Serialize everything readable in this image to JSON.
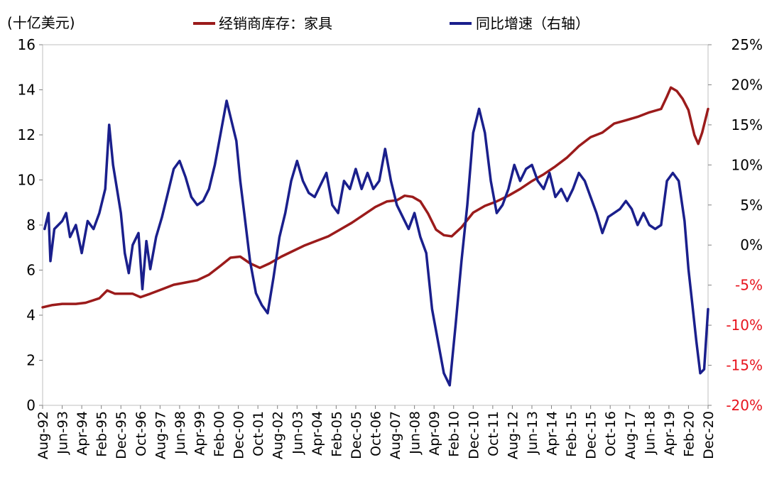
{
  "chart_data": {
    "type": "line",
    "unit_label": "(十亿美元)",
    "y_left": {
      "ylim": [
        0,
        16
      ],
      "ticks": [
        "0",
        "2",
        "4",
        "6",
        "8",
        "10",
        "12",
        "14",
        "16"
      ]
    },
    "y_right": {
      "ylim": [
        -20,
        25
      ],
      "ticks": [
        {
          "value": -20,
          "label": "-20%",
          "color": "#e8141e"
        },
        {
          "value": -15,
          "label": "-15%",
          "color": "#e8141e"
        },
        {
          "value": -10,
          "label": "-10%",
          "color": "#e8141e"
        },
        {
          "value": -5,
          "label": "-5%",
          "color": "#e8141e"
        },
        {
          "value": 0,
          "label": "0%",
          "color": "#000000"
        },
        {
          "value": 5,
          "label": "5%",
          "color": "#000000"
        },
        {
          "value": 10,
          "label": "10%",
          "color": "#000000"
        },
        {
          "value": 15,
          "label": "15%",
          "color": "#000000"
        },
        {
          "value": 20,
          "label": "20%",
          "color": "#000000"
        },
        {
          "value": 25,
          "label": "25%",
          "color": "#000000"
        }
      ]
    },
    "x_ticks": [
      "Aug-92",
      "Jun-93",
      "Apr-94",
      "Feb-95",
      "Dec-95",
      "Oct-96",
      "Aug-97",
      "Jun-98",
      "Apr-99",
      "Feb-00",
      "Dec-00",
      "Oct-01",
      "Aug-02",
      "Jun-03",
      "Apr-04",
      "Feb-05",
      "Dec-05",
      "Oct-06",
      "Aug-07",
      "Jun-08",
      "Apr-09",
      "Feb-10",
      "Dec-10",
      "Oct-11",
      "Aug-12",
      "Jun-13",
      "Apr-14",
      "Feb-15",
      "Dec-15",
      "Oct-16",
      "Aug-17",
      "Jun-18",
      "Apr-19",
      "Feb-20",
      "Dec-20"
    ],
    "grid": false,
    "legend_position": "top",
    "series": [
      {
        "name": "经销商库存：家具",
        "axis": "left",
        "color": "#9b1b1b",
        "points": [
          [
            "1992-08",
            4.35
          ],
          [
            "1993-01",
            4.45
          ],
          [
            "1993-06",
            4.5
          ],
          [
            "1994-01",
            4.5
          ],
          [
            "1994-06",
            4.55
          ],
          [
            "1995-01",
            4.75
          ],
          [
            "1995-05",
            5.1
          ],
          [
            "1995-09",
            4.95
          ],
          [
            "1996-01",
            4.95
          ],
          [
            "1996-06",
            4.95
          ],
          [
            "1996-10",
            4.8
          ],
          [
            "1997-03",
            4.95
          ],
          [
            "1997-09",
            5.15
          ],
          [
            "1998-03",
            5.35
          ],
          [
            "1998-09",
            5.45
          ],
          [
            "1999-03",
            5.55
          ],
          [
            "1999-09",
            5.8
          ],
          [
            "2000-03",
            6.2
          ],
          [
            "2000-08",
            6.55
          ],
          [
            "2001-01",
            6.6
          ],
          [
            "2001-06",
            6.3
          ],
          [
            "2001-11",
            6.1
          ],
          [
            "2002-04",
            6.3
          ],
          [
            "2002-10",
            6.6
          ],
          [
            "2003-04",
            6.85
          ],
          [
            "2003-10",
            7.1
          ],
          [
            "2004-04",
            7.3
          ],
          [
            "2004-10",
            7.5
          ],
          [
            "2005-04",
            7.8
          ],
          [
            "2005-10",
            8.1
          ],
          [
            "2006-04",
            8.45
          ],
          [
            "2006-10",
            8.8
          ],
          [
            "2007-04",
            9.05
          ],
          [
            "2007-09",
            9.1
          ],
          [
            "2008-01",
            9.3
          ],
          [
            "2008-05",
            9.25
          ],
          [
            "2008-09",
            9.05
          ],
          [
            "2009-01",
            8.5
          ],
          [
            "2009-05",
            7.8
          ],
          [
            "2009-09",
            7.55
          ],
          [
            "2010-01",
            7.5
          ],
          [
            "2010-06",
            7.9
          ],
          [
            "2010-12",
            8.55
          ],
          [
            "2011-06",
            8.85
          ],
          [
            "2011-12",
            9.05
          ],
          [
            "2012-06",
            9.3
          ],
          [
            "2012-12",
            9.6
          ],
          [
            "2013-06",
            9.95
          ],
          [
            "2013-12",
            10.25
          ],
          [
            "2014-06",
            10.6
          ],
          [
            "2014-12",
            11.0
          ],
          [
            "2015-06",
            11.5
          ],
          [
            "2015-12",
            11.9
          ],
          [
            "2016-06",
            12.1
          ],
          [
            "2016-12",
            12.5
          ],
          [
            "2017-06",
            12.65
          ],
          [
            "2017-12",
            12.8
          ],
          [
            "2018-06",
            13.0
          ],
          [
            "2018-12",
            13.15
          ],
          [
            "2019-03",
            13.7
          ],
          [
            "2019-05",
            14.1
          ],
          [
            "2019-08",
            13.95
          ],
          [
            "2019-11",
            13.6
          ],
          [
            "2020-02",
            13.1
          ],
          [
            "2020-05",
            12.0
          ],
          [
            "2020-07",
            11.6
          ],
          [
            "2020-09",
            12.1
          ],
          [
            "2020-12",
            13.15
          ]
        ]
      },
      {
        "name": "同比增速（右轴）",
        "axis": "right",
        "color": "#1a1f8c",
        "points": [
          [
            "1992-09",
            2.0
          ],
          [
            "1992-11",
            4.0
          ],
          [
            "1992-12",
            -2.0
          ],
          [
            "1993-02",
            2.0
          ],
          [
            "1993-06",
            3.0
          ],
          [
            "1993-08",
            4.0
          ],
          [
            "1993-10",
            1.0
          ],
          [
            "1994-01",
            2.5
          ],
          [
            "1994-04",
            -1.0
          ],
          [
            "1994-07",
            3.0
          ],
          [
            "1994-10",
            2.0
          ],
          [
            "1995-01",
            4.0
          ],
          [
            "1995-04",
            7.0
          ],
          [
            "1995-06",
            15.0
          ],
          [
            "1995-08",
            10.0
          ],
          [
            "1995-10",
            7.0
          ],
          [
            "1995-12",
            4.0
          ],
          [
            "1996-02",
            -1.0
          ],
          [
            "1996-04",
            -3.5
          ],
          [
            "1996-06",
            0.0
          ],
          [
            "1996-09",
            1.5
          ],
          [
            "1996-11",
            -5.5
          ],
          [
            "1997-01",
            0.5
          ],
          [
            "1997-03",
            -3.0
          ],
          [
            "1997-06",
            1.0
          ],
          [
            "1997-09",
            3.5
          ],
          [
            "1997-12",
            6.5
          ],
          [
            "1998-03",
            9.5
          ],
          [
            "1998-06",
            10.5
          ],
          [
            "1998-09",
            8.5
          ],
          [
            "1998-12",
            6.0
          ],
          [
            "1999-03",
            5.0
          ],
          [
            "1999-06",
            5.5
          ],
          [
            "1999-09",
            7.0
          ],
          [
            "1999-12",
            10.0
          ],
          [
            "2000-03",
            14.0
          ],
          [
            "2000-06",
            18.0
          ],
          [
            "2000-09",
            15.0
          ],
          [
            "2000-11",
            13.0
          ],
          [
            "2001-01",
            8.0
          ],
          [
            "2001-03",
            4.0
          ],
          [
            "2001-06",
            -2.0
          ],
          [
            "2001-09",
            -6.0
          ],
          [
            "2001-12",
            -7.5
          ],
          [
            "2002-03",
            -8.5
          ],
          [
            "2002-06",
            -4.0
          ],
          [
            "2002-09",
            1.0
          ],
          [
            "2002-12",
            4.0
          ],
          [
            "2003-03",
            8.0
          ],
          [
            "2003-06",
            10.5
          ],
          [
            "2003-09",
            8.0
          ],
          [
            "2003-12",
            6.5
          ],
          [
            "2004-03",
            6.0
          ],
          [
            "2004-06",
            7.5
          ],
          [
            "2004-09",
            9.0
          ],
          [
            "2004-12",
            5.0
          ],
          [
            "2005-03",
            4.0
          ],
          [
            "2005-06",
            8.0
          ],
          [
            "2005-09",
            7.0
          ],
          [
            "2005-12",
            9.5
          ],
          [
            "2006-03",
            7.0
          ],
          [
            "2006-06",
            9.0
          ],
          [
            "2006-09",
            7.0
          ],
          [
            "2006-12",
            8.0
          ],
          [
            "2007-03",
            12.0
          ],
          [
            "2007-06",
            8.0
          ],
          [
            "2007-09",
            5.0
          ],
          [
            "2007-12",
            3.5
          ],
          [
            "2008-03",
            2.0
          ],
          [
            "2008-06",
            4.0
          ],
          [
            "2008-09",
            1.0
          ],
          [
            "2008-12",
            -1.0
          ],
          [
            "2009-03",
            -8.0
          ],
          [
            "2009-06",
            -12.0
          ],
          [
            "2009-09",
            -16.0
          ],
          [
            "2009-12",
            -17.5
          ],
          [
            "2010-03",
            -10.0
          ],
          [
            "2010-06",
            -2.0
          ],
          [
            "2010-09",
            5.0
          ],
          [
            "2010-12",
            14.0
          ],
          [
            "2011-03",
            17.0
          ],
          [
            "2011-06",
            14.0
          ],
          [
            "2011-09",
            8.0
          ],
          [
            "2011-12",
            4.0
          ],
          [
            "2012-03",
            5.0
          ],
          [
            "2012-06",
            7.0
          ],
          [
            "2012-09",
            10.0
          ],
          [
            "2012-12",
            8.0
          ],
          [
            "2013-03",
            9.5
          ],
          [
            "2013-06",
            10.0
          ],
          [
            "2013-09",
            8.0
          ],
          [
            "2013-12",
            7.0
          ],
          [
            "2014-03",
            9.0
          ],
          [
            "2014-06",
            6.0
          ],
          [
            "2014-09",
            7.0
          ],
          [
            "2014-12",
            5.5
          ],
          [
            "2015-03",
            7.0
          ],
          [
            "2015-06",
            9.0
          ],
          [
            "2015-09",
            8.0
          ],
          [
            "2015-12",
            6.0
          ],
          [
            "2016-03",
            4.0
          ],
          [
            "2016-06",
            1.5
          ],
          [
            "2016-09",
            3.5
          ],
          [
            "2016-12",
            4.0
          ],
          [
            "2017-03",
            4.5
          ],
          [
            "2017-06",
            5.5
          ],
          [
            "2017-09",
            4.5
          ],
          [
            "2017-12",
            2.5
          ],
          [
            "2018-03",
            4.0
          ],
          [
            "2018-06",
            2.5
          ],
          [
            "2018-09",
            2.0
          ],
          [
            "2018-12",
            2.5
          ],
          [
            "2019-03",
            8.0
          ],
          [
            "2019-06",
            9.0
          ],
          [
            "2019-09",
            8.0
          ],
          [
            "2019-12",
            3.0
          ],
          [
            "2020-02",
            -3.0
          ],
          [
            "2020-04",
            -7.5
          ],
          [
            "2020-06",
            -12.0
          ],
          [
            "2020-08",
            -16.0
          ],
          [
            "2020-10",
            -15.5
          ],
          [
            "2020-12",
            -8.0
          ]
        ]
      }
    ]
  }
}
